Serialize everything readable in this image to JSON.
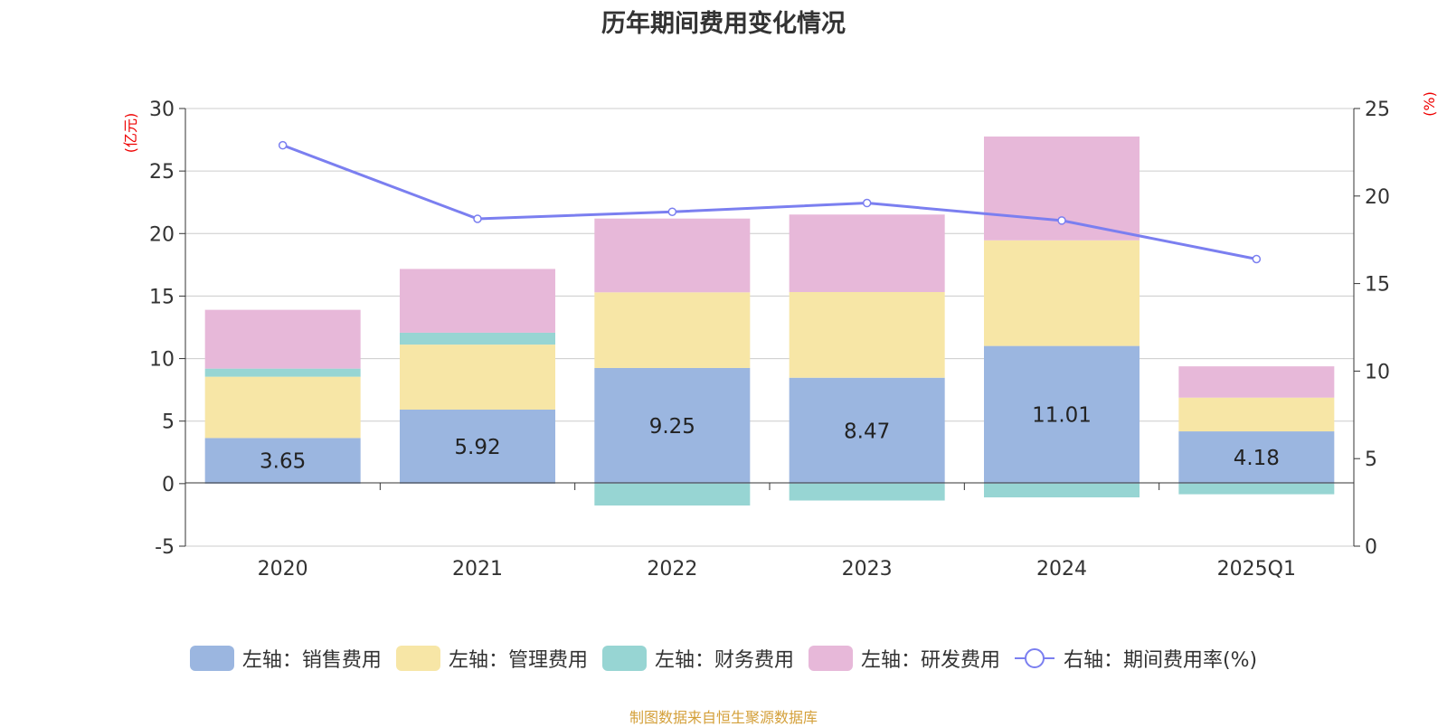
{
  "title": "历年期间费用变化情况",
  "source": "制图数据来自恒生聚源数据库",
  "chart_data": {
    "type": "bar",
    "stacked": true,
    "categories": [
      "2020",
      "2021",
      "2022",
      "2023",
      "2024",
      "2025Q1"
    ],
    "left_axis": {
      "unit": "(亿元)",
      "ylim": [
        -5,
        30
      ],
      "ticks": [
        30,
        25,
        20,
        15,
        10,
        5,
        0,
        -5
      ],
      "grid": true
    },
    "right_axis": {
      "unit": "(%)",
      "ylim": [
        0,
        25
      ],
      "ticks": [
        25,
        20,
        15,
        10,
        5,
        0
      ]
    },
    "series": [
      {
        "name": "左轴：销售费用",
        "type": "bar",
        "axis": "left",
        "color": "#9bb6e0",
        "values": [
          3.65,
          5.92,
          9.25,
          8.47,
          11.01,
          4.18
        ],
        "labels": [
          "3.65",
          "5.92",
          "9.25",
          "8.47",
          "11.01",
          "4.18"
        ]
      },
      {
        "name": "左轴：管理费用",
        "type": "bar",
        "axis": "left",
        "color": "#f7e6a6",
        "values": [
          4.9,
          5.2,
          6.05,
          6.85,
          8.45,
          2.7
        ]
      },
      {
        "name": "左轴：财务费用",
        "type": "bar",
        "axis": "left",
        "color": "#97d5d3",
        "values": [
          0.65,
          0.95,
          -1.75,
          -1.35,
          -1.1,
          -0.85
        ]
      },
      {
        "name": "左轴：研发费用",
        "type": "bar",
        "axis": "left",
        "color": "#e7b8d9",
        "values": [
          4.7,
          5.1,
          5.9,
          6.2,
          8.3,
          2.5
        ]
      },
      {
        "name": "右轴：期间费用率(%)",
        "type": "line",
        "axis": "right",
        "color": "#7b7ff0",
        "values": [
          22.9,
          18.7,
          19.1,
          19.6,
          18.6,
          16.4
        ]
      }
    ]
  }
}
